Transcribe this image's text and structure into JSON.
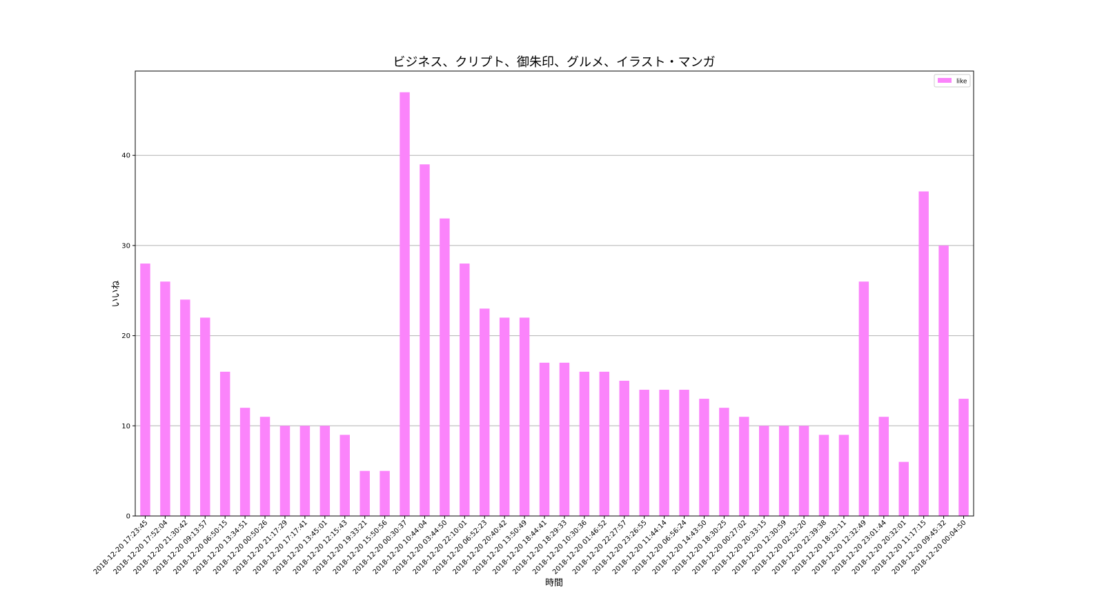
{
  "chart_data": {
    "type": "bar",
    "title": "ビジネス、クリプト、御朱印、グルメ、イラスト・マンガ",
    "x_label": "時間",
    "y_label": "いいね",
    "categories": [
      "2018-12-20 17:23:45",
      "2018-12-20 17:52:04",
      "2018-12-20 21:30:42",
      "2018-12-20 09:13:57",
      "2018-12-20 06:50:15",
      "2018-12-20 13:34:51",
      "2018-12-20 00:50:26",
      "2018-12-20 21:17:29",
      "2018-12-20 17:17:41",
      "2018-12-20 13:45:01",
      "2018-12-20 12:15:43",
      "2018-12-20 19:33:21",
      "2018-12-20 15:50:56",
      "2018-12-20 00:30:37",
      "2018-12-20 10:44:04",
      "2018-12-20 03:44:50",
      "2018-12-20 22:10:01",
      "2018-12-20 06:52:23",
      "2018-12-20 20:40:42",
      "2018-12-20 13:50:49",
      "2018-12-20 18:44:41",
      "2018-12-20 18:29:33",
      "2018-12-20 10:30:36",
      "2018-12-20 01:46:52",
      "2018-12-20 22:27:57",
      "2018-12-20 23:26:55",
      "2018-12-20 11:44:14",
      "2018-12-20 06:56:24",
      "2018-12-20 14:43:50",
      "2018-12-20 18:30:25",
      "2018-12-20 00:27:02",
      "2018-12-20 20:33:15",
      "2018-12-20 12:30:59",
      "2018-12-20 02:52:20",
      "2018-12-20 22:39:38",
      "2018-12-20 18:32:11",
      "2018-12-20 12:32:49",
      "2018-12-20 23:01:44",
      "2018-12-20 20:32:01",
      "2018-12-20 11:17:15",
      "2018-12-20 09:45:32",
      "2018-12-20 00:04:50"
    ],
    "series": [
      {
        "name": "like",
        "color": "#fb84fb",
        "values": [
          28,
          26,
          24,
          22,
          16,
          12,
          11,
          10,
          10,
          10,
          9,
          5,
          5,
          47,
          39,
          33,
          28,
          23,
          22,
          22,
          17,
          17,
          16,
          16,
          15,
          14,
          14,
          14,
          13,
          12,
          11,
          10,
          10,
          10,
          9,
          9,
          26,
          11,
          6,
          36,
          30,
          13
        ]
      }
    ],
    "ylim": [
      0,
      49.35
    ],
    "yticks": [
      0,
      10,
      20,
      30,
      40
    ],
    "grid": true,
    "legend": "upper right"
  }
}
